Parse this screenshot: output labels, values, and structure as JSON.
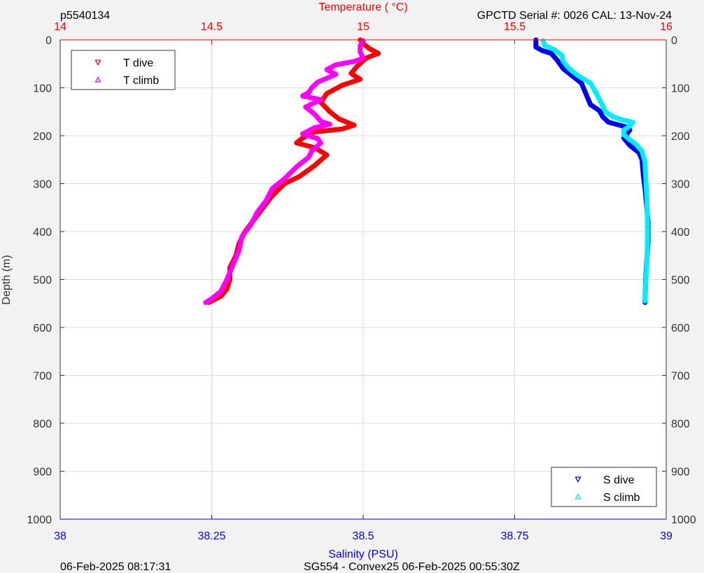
{
  "header": {
    "profile_id": "p5540134",
    "instrument": "GPCTD Serial #: 0026 CAL: 13-Nov-24"
  },
  "footer": {
    "plot_time": "06-Feb-2025 08:17:31",
    "mission": "SG554 - Convex25 06-Feb-2025 00:55:30Z"
  },
  "colors": {
    "t_dive": "#ff0000",
    "t_climb": "#ff00ff",
    "s_dive": "#0000ee",
    "s_climb": "#00eeff",
    "temp_axis": "#ff0000",
    "sal_axis": "#0000ff",
    "temp_grid": "#ffcccc",
    "depth_grid": "#dcdcdc"
  },
  "chart_data": {
    "type": "scatter",
    "ylabel": "Depth (m)",
    "ylim": [
      0,
      1000
    ],
    "y_reversed": true,
    "y_ticks": [
      "0",
      "100",
      "200",
      "300",
      "400",
      "500",
      "600",
      "700",
      "800",
      "900",
      "1000"
    ],
    "temperature_axis": {
      "label": "Temperature (    °C)",
      "position": "top",
      "xlim": [
        14,
        16
      ],
      "ticks": [
        "14",
        "14.5",
        "15",
        "15.5",
        "16"
      ],
      "grid": true
    },
    "salinity_axis": {
      "label": "Salinity (PSU)",
      "position": "bottom",
      "xlim": [
        38,
        39
      ],
      "ticks": [
        "38",
        "38.25",
        "38.5",
        "38.75",
        "39"
      ]
    },
    "legends": [
      {
        "placement": "top-left",
        "entries": [
          {
            "label": "T dive",
            "series": "t_dive"
          },
          {
            "label": "T climb",
            "series": "t_climb"
          }
        ]
      },
      {
        "placement": "bottom-right",
        "entries": [
          {
            "label": "S dive",
            "series": "s_dive"
          },
          {
            "label": "S climb",
            "series": "s_climb"
          }
        ]
      }
    ],
    "series": {
      "t_dive": {
        "name": "T dive",
        "axis": "temperature",
        "points": [
          [
            14.99,
            0
          ],
          [
            15.0,
            8
          ],
          [
            15.02,
            18
          ],
          [
            15.05,
            28
          ],
          [
            15.01,
            38
          ],
          [
            14.98,
            55
          ],
          [
            14.96,
            70
          ],
          [
            14.99,
            82
          ],
          [
            14.93,
            95
          ],
          [
            14.88,
            112
          ],
          [
            14.86,
            130
          ],
          [
            14.89,
            150
          ],
          [
            14.92,
            165
          ],
          [
            14.97,
            178
          ],
          [
            14.93,
            186
          ],
          [
            14.84,
            192
          ],
          [
            14.8,
            205
          ],
          [
            14.78,
            215
          ],
          [
            14.84,
            225
          ],
          [
            14.88,
            240
          ],
          [
            14.84,
            262
          ],
          [
            14.79,
            285
          ],
          [
            14.74,
            300
          ],
          [
            14.7,
            325
          ],
          [
            14.67,
            350
          ],
          [
            14.64,
            375
          ],
          [
            14.61,
            400
          ],
          [
            14.59,
            425
          ],
          [
            14.58,
            450
          ],
          [
            14.56,
            475
          ],
          [
            14.56,
            500
          ],
          [
            14.55,
            520
          ],
          [
            14.53,
            535
          ],
          [
            14.49,
            548
          ]
        ]
      },
      "t_climb": {
        "name": "T climb",
        "axis": "temperature",
        "points": [
          [
            15.0,
            2
          ],
          [
            14.99,
            12
          ],
          [
            14.99,
            25
          ],
          [
            15.0,
            38
          ],
          [
            14.97,
            45
          ],
          [
            14.91,
            52
          ],
          [
            14.88,
            62
          ],
          [
            14.91,
            72
          ],
          [
            14.85,
            88
          ],
          [
            14.83,
            100
          ],
          [
            14.82,
            110
          ],
          [
            14.8,
            117
          ],
          [
            14.86,
            125
          ],
          [
            14.81,
            140
          ],
          [
            14.84,
            155
          ],
          [
            14.86,
            170
          ],
          [
            14.89,
            176
          ],
          [
            14.84,
            183
          ],
          [
            14.8,
            196
          ],
          [
            14.85,
            206
          ],
          [
            14.86,
            215
          ],
          [
            14.83,
            232
          ],
          [
            14.82,
            245
          ],
          [
            14.78,
            265
          ],
          [
            14.74,
            290
          ],
          [
            14.7,
            310
          ],
          [
            14.68,
            335
          ],
          [
            14.65,
            360
          ],
          [
            14.63,
            385
          ],
          [
            14.6,
            410
          ],
          [
            14.59,
            440
          ],
          [
            14.57,
            470
          ],
          [
            14.55,
            500
          ],
          [
            14.53,
            525
          ],
          [
            14.5,
            540
          ],
          [
            14.48,
            548
          ]
        ]
      },
      "s_dive": {
        "name": "S dive",
        "axis": "salinity",
        "points": [
          [
            38.785,
            0
          ],
          [
            38.785,
            15
          ],
          [
            38.795,
            22
          ],
          [
            38.81,
            28
          ],
          [
            38.82,
            42
          ],
          [
            38.83,
            60
          ],
          [
            38.845,
            75
          ],
          [
            38.86,
            90
          ],
          [
            38.865,
            105
          ],
          [
            38.87,
            120
          ],
          [
            38.875,
            135
          ],
          [
            38.89,
            148
          ],
          [
            38.895,
            160
          ],
          [
            38.905,
            172
          ],
          [
            38.935,
            182
          ],
          [
            38.94,
            188
          ],
          [
            38.935,
            196
          ],
          [
            38.93,
            205
          ],
          [
            38.94,
            220
          ],
          [
            38.955,
            235
          ],
          [
            38.96,
            250
          ],
          [
            38.962,
            280
          ],
          [
            38.965,
            310
          ],
          [
            38.968,
            350
          ],
          [
            38.97,
            380
          ],
          [
            38.97,
            420
          ],
          [
            38.968,
            460
          ],
          [
            38.966,
            500
          ],
          [
            38.965,
            548
          ]
        ]
      },
      "s_climb": {
        "name": "S climb",
        "axis": "salinity",
        "points": [
          [
            38.797,
            2
          ],
          [
            38.8,
            12
          ],
          [
            38.815,
            20
          ],
          [
            38.828,
            32
          ],
          [
            38.83,
            45
          ],
          [
            38.84,
            60
          ],
          [
            38.855,
            75
          ],
          [
            38.875,
            90
          ],
          [
            38.885,
            112
          ],
          [
            38.89,
            125
          ],
          [
            38.895,
            137
          ],
          [
            38.9,
            150
          ],
          [
            38.912,
            160
          ],
          [
            38.925,
            166
          ],
          [
            38.945,
            172
          ],
          [
            38.94,
            180
          ],
          [
            38.93,
            188
          ],
          [
            38.93,
            198
          ],
          [
            38.94,
            208
          ],
          [
            38.95,
            218
          ],
          [
            38.96,
            232
          ],
          [
            38.965,
            255
          ],
          [
            38.966,
            285
          ],
          [
            38.968,
            330
          ],
          [
            38.969,
            380
          ],
          [
            38.969,
            420
          ],
          [
            38.968,
            470
          ],
          [
            38.966,
            510
          ],
          [
            38.965,
            545
          ]
        ]
      }
    }
  }
}
